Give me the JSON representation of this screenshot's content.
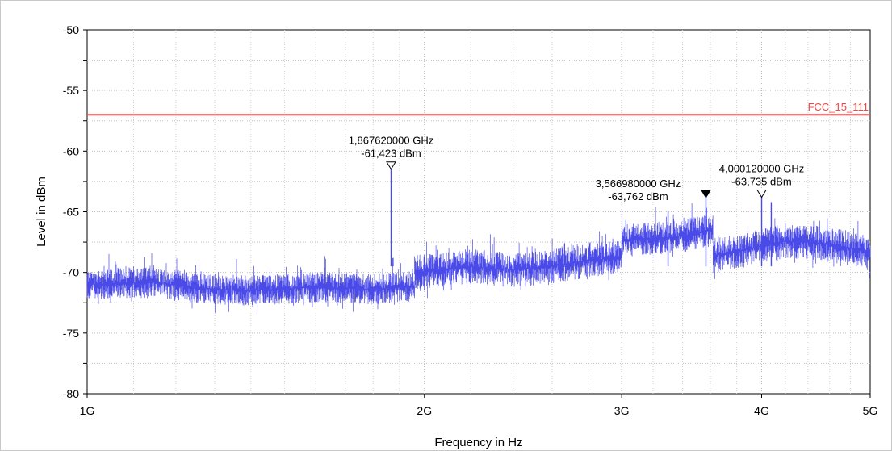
{
  "chart_data": {
    "type": "line",
    "title": "",
    "xlabel": "Frequency in Hz",
    "ylabel": "Level in dBm",
    "x_scale": "log",
    "xlim": [
      1000000000,
      5000000000
    ],
    "ylim": [
      -80,
      -50
    ],
    "grid": true,
    "x_ticks": [
      {
        "value": 1000000000,
        "label": "1G"
      },
      {
        "value": 2000000000,
        "label": "2G"
      },
      {
        "value": 3000000000,
        "label": "3G"
      },
      {
        "value": 4000000000,
        "label": "4G"
      },
      {
        "value": 5000000000,
        "label": "5G"
      }
    ],
    "y_ticks": [
      {
        "value": -50,
        "label": "-50"
      },
      {
        "value": -55,
        "label": "-55"
      },
      {
        "value": -60,
        "label": "-60"
      },
      {
        "value": -65,
        "label": "-65"
      },
      {
        "value": -70,
        "label": "-70"
      },
      {
        "value": -75,
        "label": "-75"
      },
      {
        "value": -80,
        "label": "-80"
      }
    ],
    "limit_line": {
      "name": "FCC_15_111",
      "value": -57,
      "color": "#f04848"
    },
    "series": [
      {
        "color": "#4a4ae8",
        "segments": [
          {
            "x_start": 1000000000,
            "x_end": 1960000000,
            "base": [
              [
                1000000000,
                -71.0
              ],
              [
                1150000000,
                -70.8
              ],
              [
                1250000000,
                -71.3
              ],
              [
                1400000000,
                -71.5
              ],
              [
                1600000000,
                -71.2
              ],
              [
                1800000000,
                -71.4
              ],
              [
                1960000000,
                -71.1
              ]
            ],
            "spread": 1.4
          },
          {
            "x_start": 1960000000,
            "x_end": 3000000000,
            "base": [
              [
                1960000000,
                -70.0
              ],
              [
                2200000000,
                -69.5
              ],
              [
                2400000000,
                -69.8
              ],
              [
                2600000000,
                -69.5
              ],
              [
                2800000000,
                -69.0
              ],
              [
                3000000000,
                -68.8
              ]
            ],
            "spread": 1.6
          },
          {
            "x_start": 3000000000,
            "x_end": 3620000000,
            "base": [
              [
                3000000000,
                -67.4
              ],
              [
                3200000000,
                -67.2
              ],
              [
                3400000000,
                -67.0
              ],
              [
                3620000000,
                -66.4
              ]
            ],
            "spread": 1.5
          },
          {
            "x_start": 3620000000,
            "x_end": 5000000000,
            "base": [
              [
                3620000000,
                -68.6
              ],
              [
                3800000000,
                -68.3
              ],
              [
                4000000000,
                -67.8
              ],
              [
                4200000000,
                -67.4
              ],
              [
                4500000000,
                -67.6
              ],
              [
                5000000000,
                -68.3
              ]
            ],
            "spread": 1.6
          }
        ],
        "spikes": [
          [
            1867620000,
            -61.423
          ],
          [
            1875000000,
            -68.8
          ],
          [
            3566980000,
            -63.762
          ],
          [
            4000120000,
            -63.735
          ],
          [
            4080000000,
            -64.2
          ],
          [
            3300000000,
            -65.0
          ]
        ]
      }
    ],
    "markers": [
      {
        "freq": 1867620000,
        "level": -61.423,
        "freq_label": "1,867620000 GHz",
        "level_label": "-61,423 dBm",
        "filled": false
      },
      {
        "freq": 3566980000,
        "level": -63.762,
        "freq_label": "3,566980000 GHz",
        "level_label": "-63,762 dBm",
        "filled": true
      },
      {
        "freq": 4000120000,
        "level": -63.735,
        "freq_label": "4,000120000 GHz",
        "level_label": "-63,735 dBm",
        "filled": false
      }
    ]
  }
}
